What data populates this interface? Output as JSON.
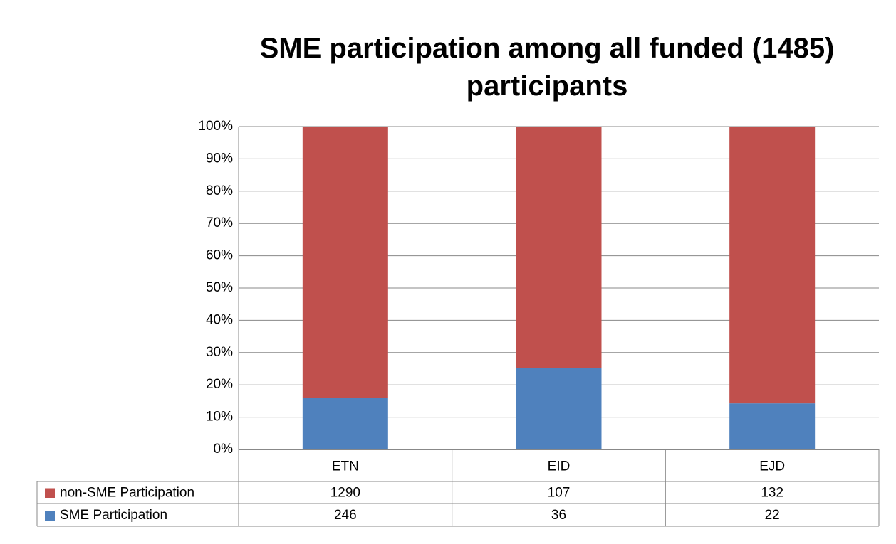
{
  "chart_data": {
    "type": "bar",
    "stacked": "percent",
    "title": "SME participation among all funded (1485) participants",
    "categories": [
      "ETN",
      "EID",
      "EJD"
    ],
    "series": [
      {
        "name": "SME Participation",
        "color": "#4f81bd",
        "values": [
          246,
          36,
          22
        ]
      },
      {
        "name": "non-SME Participation",
        "color": "#c0504d",
        "values": [
          1290,
          107,
          132
        ]
      }
    ],
    "ylim": [
      0,
      100
    ],
    "yticks": [
      {
        "value": 0,
        "label": "0%"
      },
      {
        "value": 10,
        "label": "10%"
      },
      {
        "value": 20,
        "label": "20%"
      },
      {
        "value": 30,
        "label": "30%"
      },
      {
        "value": 40,
        "label": "40%"
      },
      {
        "value": 50,
        "label": "50%"
      },
      {
        "value": 60,
        "label": "60%"
      },
      {
        "value": 70,
        "label": "70%"
      },
      {
        "value": 80,
        "label": "80%"
      },
      {
        "value": 90,
        "label": "90%"
      },
      {
        "value": 100,
        "label": "100%"
      }
    ],
    "grid": true,
    "data_table": true
  }
}
